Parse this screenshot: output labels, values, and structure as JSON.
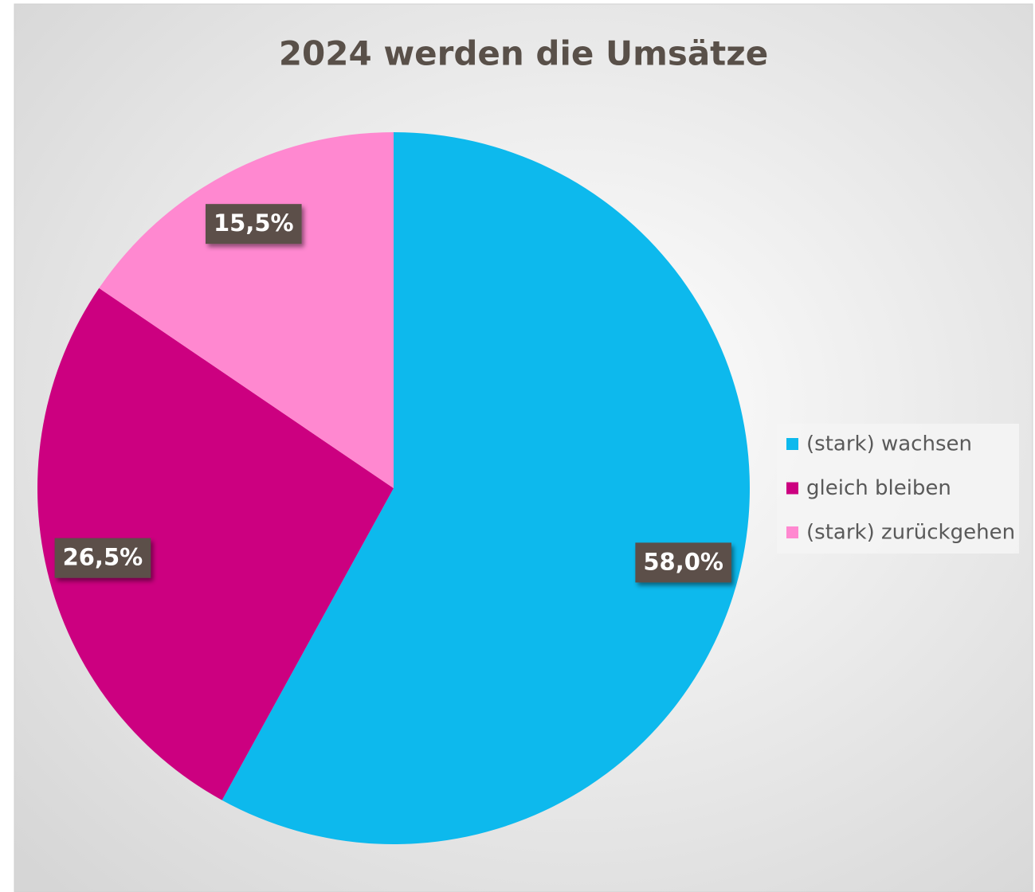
{
  "chart_data": {
    "type": "pie",
    "title": "2024 werden die Umsätze",
    "categories": [
      "(stark) wachsen",
      "gleich bleiben",
      "(stark) zurückgehen"
    ],
    "values": [
      58.0,
      26.5,
      15.5
    ],
    "value_labels": [
      "58,0%",
      "26,5%",
      "15,5%"
    ],
    "colors": [
      "#0db9ed",
      "#cc0080",
      "#ff88d0"
    ],
    "legend": "right"
  }
}
